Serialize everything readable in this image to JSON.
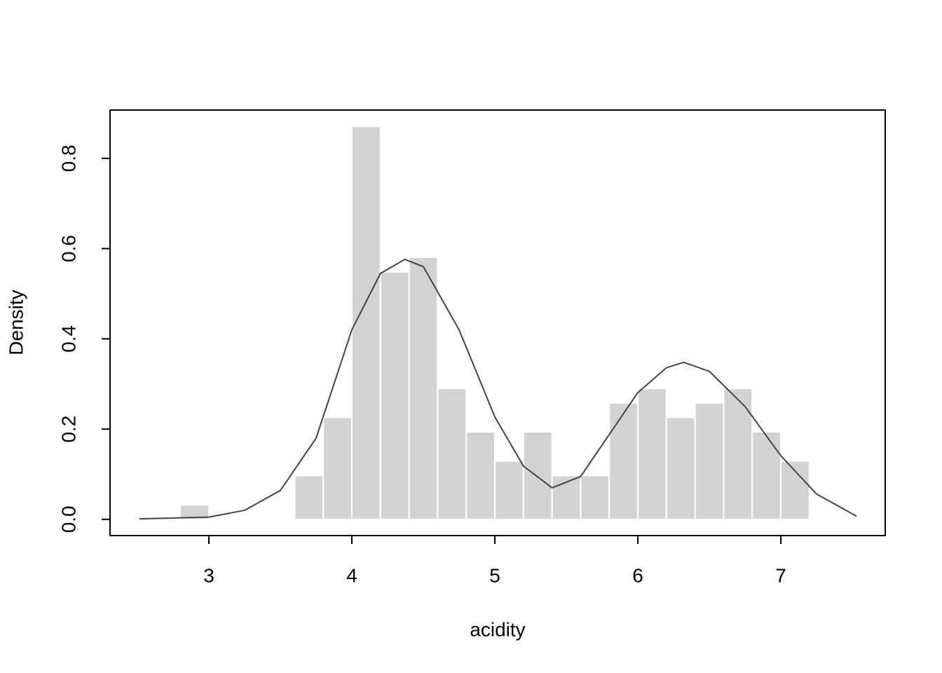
{
  "chart_data": {
    "type": "histogram",
    "x_label": "acidity",
    "y_label": "Density",
    "bins": [
      2.8,
      3.0,
      3.2,
      3.4,
      3.6,
      3.8,
      4.0,
      4.2,
      4.4,
      4.6,
      4.8,
      5.0,
      5.2,
      5.4,
      5.6,
      5.8,
      6.0,
      6.2,
      6.4,
      6.6,
      6.8,
      7.0,
      7.2
    ],
    "values": [
      0.032,
      0,
      0,
      0,
      0.097,
      0.226,
      0.871,
      0.548,
      0.581,
      0.29,
      0.194,
      0.129,
      0.194,
      0.097,
      0.097,
      0.258,
      0.29,
      0.226,
      0.258,
      0.29,
      0.194,
      0.129
    ],
    "color": "#d3d3d3",
    "density": {
      "color": "#444444",
      "x": [
        2.515,
        3.0,
        3.25,
        3.5,
        3.75,
        4.0,
        4.2,
        4.37,
        4.5,
        4.75,
        5.0,
        5.2,
        5.4,
        5.6,
        5.8,
        6.0,
        6.2,
        6.32,
        6.5,
        6.75,
        7.0,
        7.25,
        7.53
      ],
      "values": [
        0.001,
        0.005,
        0.02,
        0.064,
        0.18,
        0.42,
        0.545,
        0.576,
        0.56,
        0.42,
        0.227,
        0.118,
        0.07,
        0.095,
        0.188,
        0.281,
        0.336,
        0.348,
        0.328,
        0.25,
        0.141,
        0.056,
        0.007
      ]
    },
    "xlim": [
      2.309,
      7.73
    ],
    "ylim": [
      -0.036,
      0.907
    ],
    "xticks": [
      3,
      4,
      5,
      6,
      7
    ],
    "yticks": [
      {
        "value": 0,
        "label": "0.0"
      },
      0.2,
      0.4,
      0.6,
      0.8
    ]
  }
}
